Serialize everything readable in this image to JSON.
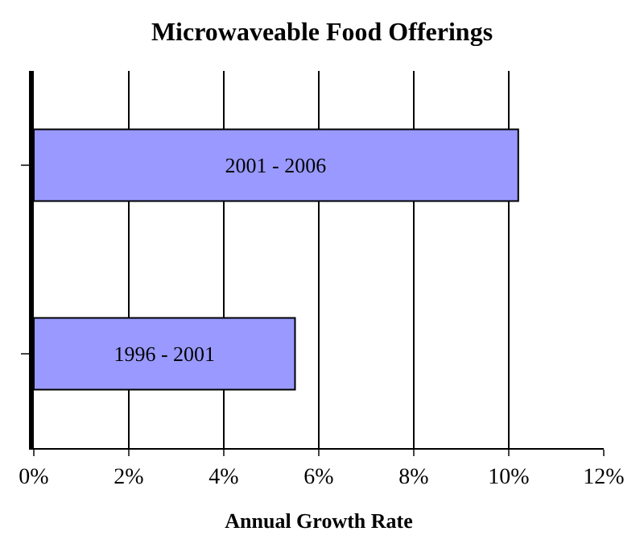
{
  "chart_data": {
    "type": "bar",
    "orientation": "horizontal",
    "title": "Microwaveable Food Offerings",
    "xlabel": "Annual Growth Rate",
    "categories": [
      "2001 - 2006",
      "1996 - 2001"
    ],
    "values": [
      10.2,
      5.5
    ],
    "color": "#9999ff",
    "xlim": [
      0,
      12
    ],
    "xticks": [
      {
        "value": 0,
        "label": "0%"
      },
      {
        "value": 2,
        "label": "2%"
      },
      {
        "value": 4,
        "label": "4%"
      },
      {
        "value": 6,
        "label": "6%"
      },
      {
        "value": 8,
        "label": "8%"
      },
      {
        "value": 10,
        "label": "10%"
      },
      {
        "value": 12,
        "label": "12%"
      }
    ],
    "grid": "x",
    "tick_labels": "x"
  }
}
